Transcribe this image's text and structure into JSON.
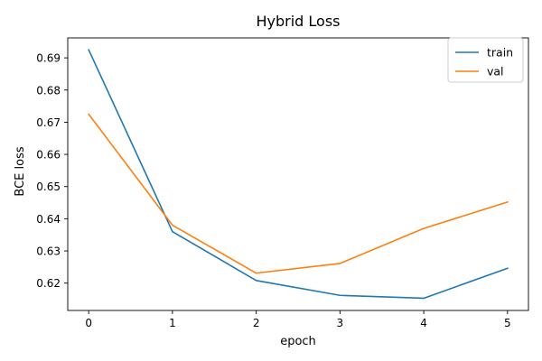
{
  "chart_data": {
    "type": "line",
    "title": "Hybrid Loss",
    "xlabel": "epoch",
    "ylabel": "BCE loss",
    "x": [
      0,
      1,
      2,
      3,
      4,
      5
    ],
    "xticks": [
      "0",
      "1",
      "2",
      "3",
      "4",
      "5"
    ],
    "yticks": [
      "0.62",
      "0.63",
      "0.64",
      "0.65",
      "0.66",
      "0.67",
      "0.68",
      "0.69"
    ],
    "xlim": [
      -0.25,
      5.25
    ],
    "ylim": [
      0.6115,
      0.6962
    ],
    "grid": false,
    "legend_position": "top-right",
    "series": [
      {
        "name": "train",
        "color": "#1f77b4",
        "values": [
          0.6925,
          0.636,
          0.6208,
          0.6162,
          0.6153,
          0.6246
        ]
      },
      {
        "name": "val",
        "color": "#ff7f0e",
        "values": [
          0.6725,
          0.638,
          0.6231,
          0.6261,
          0.637,
          0.6452
        ]
      }
    ]
  }
}
